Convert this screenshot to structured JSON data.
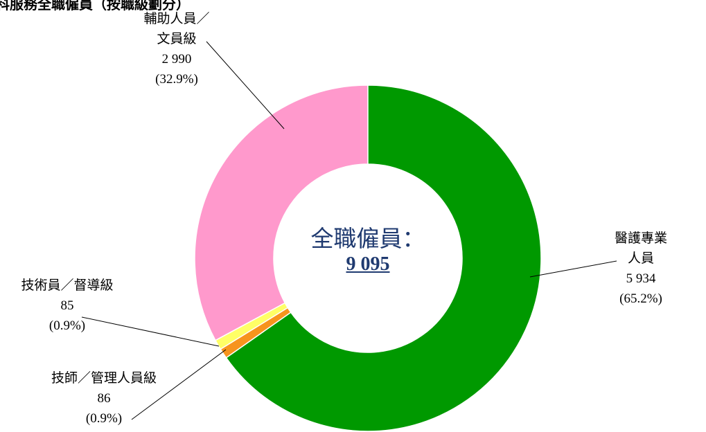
{
  "chart_data": {
    "type": "donut",
    "title": "科服務全職僱員（按職級劃分）",
    "center_label": "全職僱員：",
    "total": 9095,
    "total_label": "9 095",
    "categories": [
      "醫護專業人員",
      "技師／管理人員級",
      "技術員／督導級",
      "輔助人員／\n文員級"
    ],
    "values": [
      5934,
      86,
      85,
      2990
    ],
    "value_labels": [
      "5 934",
      "86",
      "85",
      "2 990"
    ],
    "percentages": [
      65.2,
      0.9,
      0.9,
      32.9
    ],
    "percentage_labels": [
      "(65.2%)",
      "(0.9%)",
      "(0.9%)",
      "(32.9%)"
    ],
    "colors": [
      "#009900",
      "#f7941d",
      "#ffff66",
      "#ff99cc"
    ]
  }
}
